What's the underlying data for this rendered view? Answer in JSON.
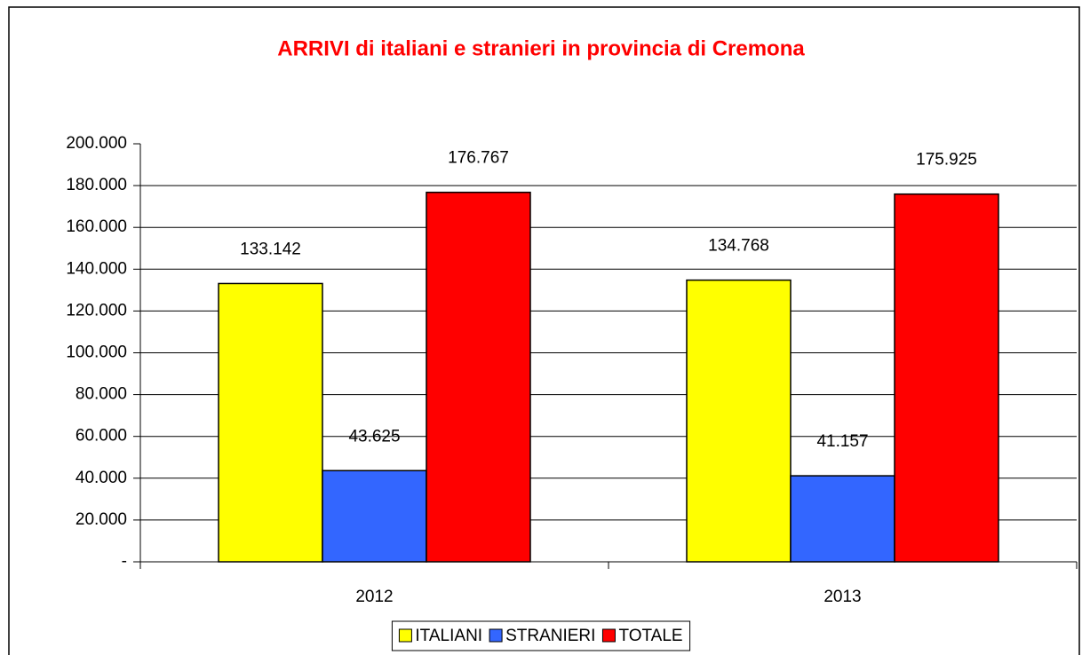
{
  "chart_data": {
    "type": "bar",
    "title": "ARRIVI di italiani e stranieri in provincia di Cremona",
    "categories": [
      "2012",
      "2013"
    ],
    "series": [
      {
        "name": "ITALIANI",
        "color": "#ffff00",
        "values": [
          133142,
          134768
        ],
        "value_labels": [
          "133.142",
          "134.768"
        ]
      },
      {
        "name": "STRANIERI",
        "color": "#3366ff",
        "values": [
          43625,
          41157
        ],
        "value_labels": [
          "43.625",
          "41.157"
        ]
      },
      {
        "name": "TOTALE",
        "color": "#ff0000",
        "values": [
          176767,
          175925
        ],
        "value_labels": [
          "176.767",
          "175.925"
        ]
      }
    ],
    "ylim": [
      0,
      200000
    ],
    "yticks": [
      {
        "value": 0,
        "label": "-"
      },
      {
        "value": 20000,
        "label": "20.000"
      },
      {
        "value": 40000,
        "label": "40.000"
      },
      {
        "value": 60000,
        "label": "60.000"
      },
      {
        "value": 80000,
        "label": "80.000"
      },
      {
        "value": 100000,
        "label": "100.000"
      },
      {
        "value": 120000,
        "label": "120.000"
      },
      {
        "value": 140000,
        "label": "140.000"
      },
      {
        "value": 160000,
        "label": "160.000"
      },
      {
        "value": 180000,
        "label": "180.000"
      },
      {
        "value": 200000,
        "label": "200.000"
      }
    ],
    "grid": true,
    "legend": "bottom"
  }
}
